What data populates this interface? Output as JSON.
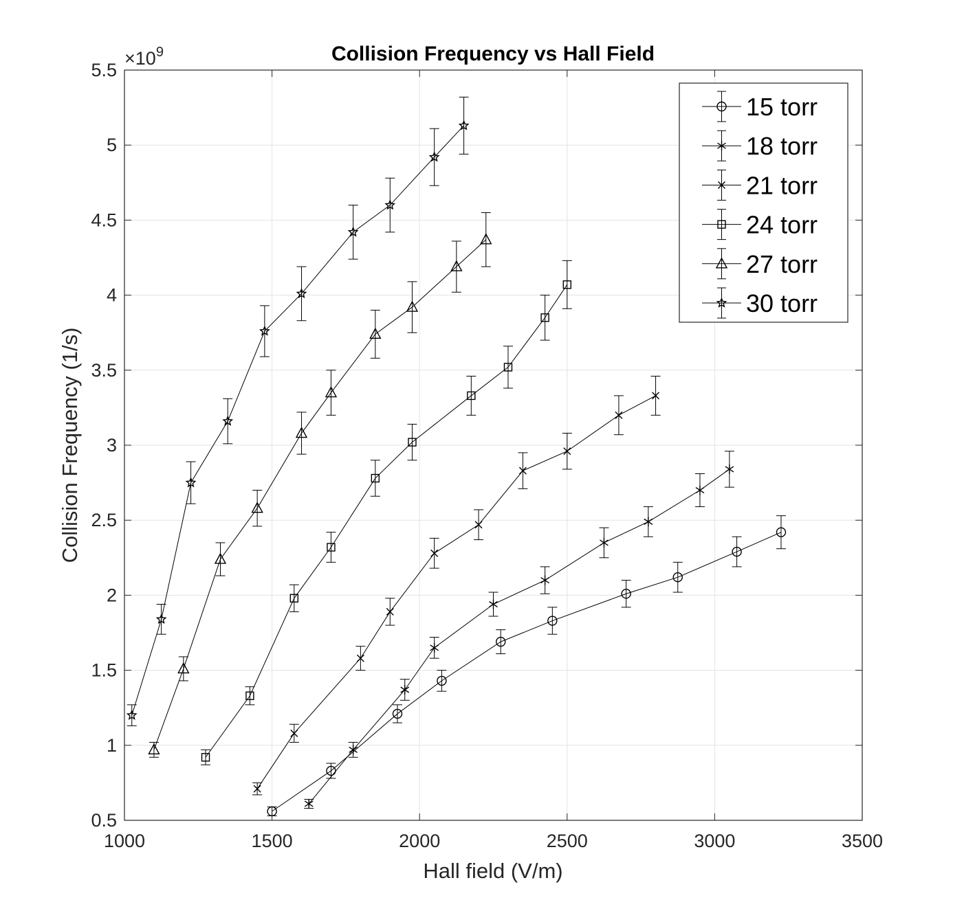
{
  "chart_data": {
    "type": "line",
    "title": "Collision Frequency vs Hall Field",
    "xlabel": "Hall field (V/m)",
    "ylabel": "Collision Frequency (1/s)",
    "y_exponent_label": "×10",
    "y_exponent_power": "9",
    "xlim": [
      1000,
      3500
    ],
    "ylim": [
      0.5,
      5.5
    ],
    "x_ticks": [
      1000,
      1500,
      2000,
      2500,
      3000,
      3500
    ],
    "x_tick_labels": [
      "1000",
      "1500",
      "2000",
      "2500",
      "3000",
      "3500"
    ],
    "y_ticks": [
      0.5,
      1,
      1.5,
      2,
      2.5,
      3,
      3.5,
      4,
      4.5,
      5,
      5.5
    ],
    "y_tick_labels": [
      "0.5",
      "1",
      "1.5",
      "2",
      "2.5",
      "3",
      "3.5",
      "4",
      "4.5",
      "5",
      "5.5"
    ],
    "grid": true,
    "legend_position": "top-right",
    "error_bars": true,
    "series": [
      {
        "name": "15 torr",
        "marker": "circle",
        "x": [
          1500,
          1700,
          1925,
          2075,
          2275,
          2450,
          2700,
          2875,
          3075,
          3225
        ],
        "y": [
          0.56,
          0.83,
          1.21,
          1.43,
          1.69,
          1.83,
          2.01,
          2.12,
          2.29,
          2.42
        ],
        "err": [
          0.03,
          0.05,
          0.06,
          0.07,
          0.08,
          0.09,
          0.09,
          0.1,
          0.1,
          0.11
        ]
      },
      {
        "name": "18 torr",
        "marker": "asterisk",
        "x": [
          1625,
          1775,
          1950,
          2050,
          2250,
          2425,
          2625,
          2775,
          2950,
          3050
        ],
        "y": [
          0.61,
          0.97,
          1.37,
          1.65,
          1.94,
          2.1,
          2.35,
          2.49,
          2.7,
          2.84
        ],
        "err": [
          0.03,
          0.05,
          0.07,
          0.07,
          0.08,
          0.09,
          0.1,
          0.1,
          0.11,
          0.12
        ]
      },
      {
        "name": "21 torr",
        "marker": "cross",
        "x": [
          1450,
          1575,
          1800,
          1900,
          2050,
          2200,
          2350,
          2500,
          2675,
          2800
        ],
        "y": [
          0.71,
          1.08,
          1.58,
          1.89,
          2.28,
          2.47,
          2.83,
          2.96,
          3.2,
          3.33
        ],
        "err": [
          0.04,
          0.06,
          0.08,
          0.09,
          0.1,
          0.1,
          0.12,
          0.12,
          0.13,
          0.13
        ]
      },
      {
        "name": "24 torr",
        "marker": "square",
        "x": [
          1275,
          1425,
          1575,
          1700,
          1850,
          1975,
          2175,
          2300,
          2425,
          2500
        ],
        "y": [
          0.92,
          1.33,
          1.98,
          2.32,
          2.78,
          3.02,
          3.33,
          3.52,
          3.85,
          4.07
        ],
        "err": [
          0.05,
          0.06,
          0.09,
          0.1,
          0.12,
          0.12,
          0.13,
          0.14,
          0.15,
          0.16
        ]
      },
      {
        "name": "27 torr",
        "marker": "triangle",
        "x": [
          1100,
          1200,
          1325,
          1450,
          1600,
          1700,
          1850,
          1975,
          2125,
          2225
        ],
        "y": [
          0.97,
          1.51,
          2.24,
          2.58,
          3.08,
          3.35,
          3.74,
          3.92,
          4.19,
          4.37
        ],
        "err": [
          0.05,
          0.08,
          0.11,
          0.12,
          0.14,
          0.15,
          0.16,
          0.17,
          0.17,
          0.18
        ]
      },
      {
        "name": "30 torr",
        "marker": "pentagram",
        "x": [
          1025,
          1125,
          1225,
          1350,
          1475,
          1600,
          1775,
          1900,
          2050,
          2150
        ],
        "y": [
          1.2,
          1.84,
          2.75,
          3.16,
          3.76,
          4.01,
          4.42,
          4.6,
          4.92,
          5.13
        ],
        "err": [
          0.07,
          0.1,
          0.14,
          0.15,
          0.17,
          0.18,
          0.18,
          0.18,
          0.19,
          0.19
        ]
      }
    ]
  }
}
